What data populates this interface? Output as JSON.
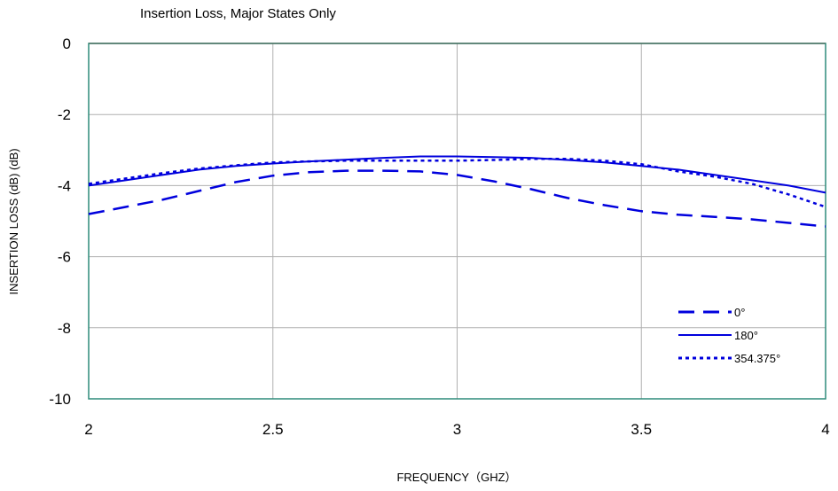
{
  "chart_data": {
    "type": "line",
    "title": "Insertion Loss, Major States Only",
    "xlabel": "FREQUENCY（GHZ）",
    "ylabel": "INSERTION LOSS (dB)  (dB)",
    "xlim": [
      2,
      4
    ],
    "ylim": [
      -10,
      0
    ],
    "xticks": [
      2,
      2.5,
      3,
      3.5,
      4
    ],
    "xtick_labels": [
      "2",
      "2.5",
      "3",
      "3.5",
      "4"
    ],
    "yticks": [
      0,
      -2,
      -4,
      -6,
      -8,
      -10
    ],
    "ytick_labels": [
      "0",
      "-2",
      "-4",
      "-6",
      "-8",
      "-10"
    ],
    "grid": true,
    "legend_position": "bottom-right",
    "colors": {
      "series": "#0000dd",
      "zero_line": "#ff0000",
      "frame": "#2e8b7a",
      "grid": "#b0b0b0"
    },
    "series": [
      {
        "name": "0°",
        "style": "dashed",
        "x": [
          2.0,
          2.1,
          2.2,
          2.3,
          2.4,
          2.5,
          2.6,
          2.7,
          2.8,
          2.9,
          3.0,
          3.1,
          3.2,
          3.3,
          3.4,
          3.5,
          3.6,
          3.7,
          3.8,
          3.9,
          4.0
        ],
        "y": [
          -4.8,
          -4.6,
          -4.4,
          -4.15,
          -3.9,
          -3.72,
          -3.62,
          -3.58,
          -3.58,
          -3.6,
          -3.7,
          -3.88,
          -4.1,
          -4.35,
          -4.55,
          -4.72,
          -4.82,
          -4.88,
          -4.95,
          -5.05,
          -5.15
        ]
      },
      {
        "name": "180°",
        "style": "solid",
        "x": [
          2.0,
          2.1,
          2.2,
          2.3,
          2.4,
          2.5,
          2.6,
          2.7,
          2.8,
          2.9,
          3.0,
          3.1,
          3.2,
          3.3,
          3.4,
          3.5,
          3.6,
          3.7,
          3.8,
          3.9,
          4.0
        ],
        "y": [
          -4.0,
          -3.85,
          -3.7,
          -3.55,
          -3.45,
          -3.38,
          -3.32,
          -3.27,
          -3.22,
          -3.18,
          -3.18,
          -3.2,
          -3.22,
          -3.28,
          -3.35,
          -3.45,
          -3.55,
          -3.7,
          -3.85,
          -4.0,
          -4.2
        ]
      },
      {
        "name": "354.375°",
        "style": "dotted",
        "x": [
          2.0,
          2.1,
          2.2,
          2.3,
          2.4,
          2.5,
          2.6,
          2.7,
          2.8,
          2.9,
          3.0,
          3.1,
          3.2,
          3.3,
          3.4,
          3.5,
          3.6,
          3.7,
          3.8,
          3.9,
          4.0
        ],
        "y": [
          -3.95,
          -3.8,
          -3.65,
          -3.52,
          -3.43,
          -3.35,
          -3.32,
          -3.3,
          -3.3,
          -3.3,
          -3.3,
          -3.28,
          -3.25,
          -3.25,
          -3.3,
          -3.4,
          -3.6,
          -3.75,
          -3.95,
          -4.25,
          -4.6
        ]
      }
    ]
  }
}
